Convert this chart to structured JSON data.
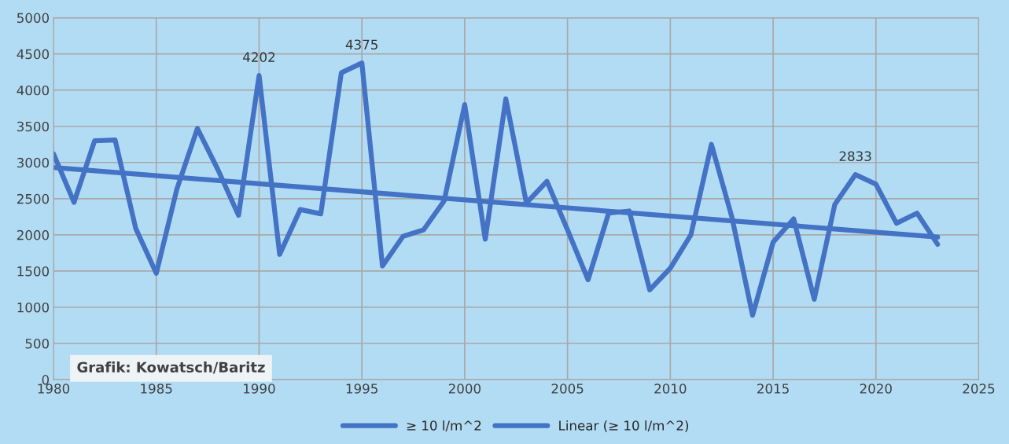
{
  "chart_data": {
    "type": "line",
    "x": [
      1980,
      1981,
      1982,
      1983,
      1984,
      1985,
      1986,
      1987,
      1988,
      1989,
      1990,
      1991,
      1992,
      1993,
      1994,
      1995,
      1996,
      1997,
      1998,
      1999,
      2000,
      2001,
      2002,
      2003,
      2004,
      2005,
      2006,
      2007,
      2008,
      2009,
      2010,
      2011,
      2012,
      2013,
      2014,
      2015,
      2016,
      2017,
      2018,
      2019,
      2020,
      2021,
      2022,
      2023
    ],
    "series": [
      {
        "name": "≥ 10 l/m^2",
        "color": "#4472c4",
        "values": [
          3120,
          2450,
          3300,
          3310,
          2090,
          1470,
          2630,
          3470,
          2900,
          2270,
          4202,
          1730,
          2350,
          2290,
          4240,
          4375,
          1570,
          1980,
          2070,
          2470,
          3800,
          1940,
          3880,
          2440,
          2740,
          2070,
          1380,
          2300,
          2330,
          1240,
          1540,
          2000,
          3250,
          2240,
          890,
          1900,
          2220,
          1110,
          2420,
          2833,
          2700,
          2160,
          2300,
          1870
        ],
        "value_labels": [
          null,
          null,
          null,
          null,
          null,
          null,
          null,
          null,
          null,
          null,
          "4202",
          null,
          null,
          null,
          null,
          "4375",
          null,
          null,
          null,
          null,
          null,
          null,
          null,
          null,
          null,
          null,
          null,
          null,
          null,
          null,
          null,
          null,
          null,
          null,
          null,
          null,
          null,
          null,
          null,
          "2833",
          null,
          null,
          null,
          null
        ]
      },
      {
        "name": "Linear (≥ 10 l/m^2)",
        "color": "#4472c4",
        "x": [
          1980,
          2023
        ],
        "values": [
          2930,
          1970
        ]
      }
    ],
    "xlim": [
      1980,
      2025
    ],
    "xticks": [
      1980,
      1985,
      1990,
      1995,
      2000,
      2005,
      2010,
      2015,
      2020,
      2025
    ],
    "ylim": [
      0,
      5000
    ],
    "yticks": [
      0,
      500,
      1000,
      1500,
      2000,
      2500,
      3000,
      3500,
      4000,
      4500,
      5000
    ],
    "grid": true,
    "legend": "bottom",
    "marker": "none",
    "line_style": "solid",
    "annotations": [
      "Grafik: Kowatsch/Baritz"
    ]
  }
}
